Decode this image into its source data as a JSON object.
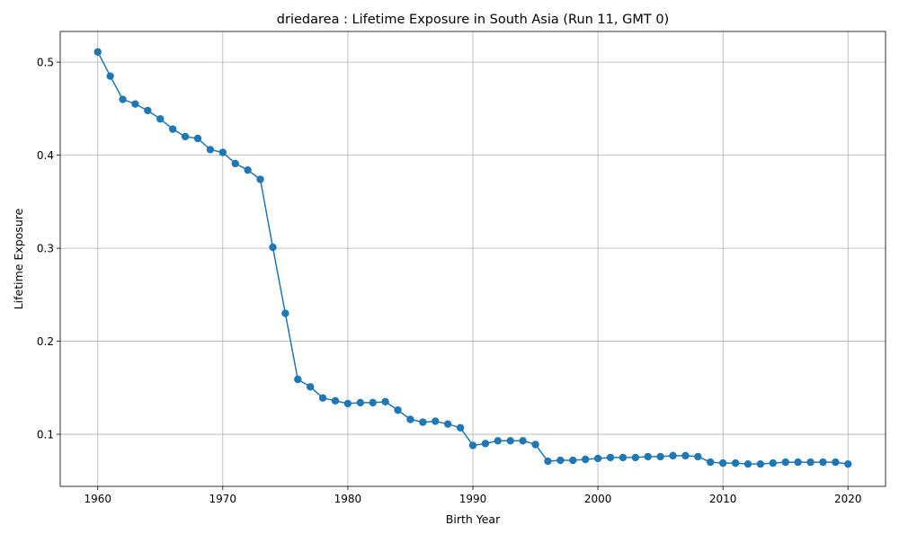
{
  "chart_data": {
    "type": "line",
    "title": "driedarea : Lifetime Exposure in South Asia (Run 11, GMT 0)",
    "xlabel": "Birth Year",
    "ylabel": "Lifetime Exposure",
    "xlim": [
      1957,
      2023
    ],
    "ylim": [
      0.044,
      0.533
    ],
    "xticks": [
      1960,
      1970,
      1980,
      1990,
      2000,
      2010,
      2020
    ],
    "yticks": [
      0.1,
      0.2,
      0.3,
      0.4,
      0.5
    ],
    "xtick_labels": [
      "1960",
      "1970",
      "1980",
      "1990",
      "2000",
      "2010",
      "2020"
    ],
    "ytick_labels": [
      "0.1",
      "0.2",
      "0.3",
      "0.4",
      "0.5"
    ],
    "grid": true,
    "colors": {
      "series": "#1f77b4",
      "grid": "#b0b0b0",
      "axis": "#000000"
    },
    "marker": "circle",
    "series": [
      {
        "x": [
          1960,
          1961,
          1962,
          1963,
          1964,
          1965,
          1966,
          1967,
          1968,
          1969,
          1970,
          1971,
          1972,
          1973,
          1974,
          1975,
          1976,
          1977,
          1978,
          1979,
          1980,
          1981,
          1982,
          1983,
          1984,
          1985,
          1986,
          1987,
          1988,
          1989,
          1990,
          1991,
          1992,
          1993,
          1994,
          1995,
          1996,
          1997,
          1998,
          1999,
          2000,
          2001,
          2002,
          2003,
          2004,
          2005,
          2006,
          2007,
          2008,
          2009,
          2010,
          2011,
          2012,
          2013,
          2014,
          2015,
          2016,
          2017,
          2018,
          2019,
          2020
        ],
        "values": [
          0.511,
          0.485,
          0.46,
          0.455,
          0.448,
          0.439,
          0.428,
          0.42,
          0.418,
          0.406,
          0.403,
          0.391,
          0.384,
          0.374,
          0.301,
          0.23,
          0.159,
          0.151,
          0.139,
          0.136,
          0.133,
          0.134,
          0.134,
          0.135,
          0.126,
          0.116,
          0.113,
          0.114,
          0.111,
          0.107,
          0.088,
          0.09,
          0.093,
          0.093,
          0.093,
          0.089,
          0.071,
          0.072,
          0.072,
          0.073,
          0.074,
          0.075,
          0.075,
          0.075,
          0.076,
          0.076,
          0.077,
          0.077,
          0.076,
          0.07,
          0.069,
          0.069,
          0.068,
          0.068,
          0.069,
          0.07,
          0.07,
          0.07,
          0.07,
          0.07,
          0.068
        ]
      }
    ]
  }
}
